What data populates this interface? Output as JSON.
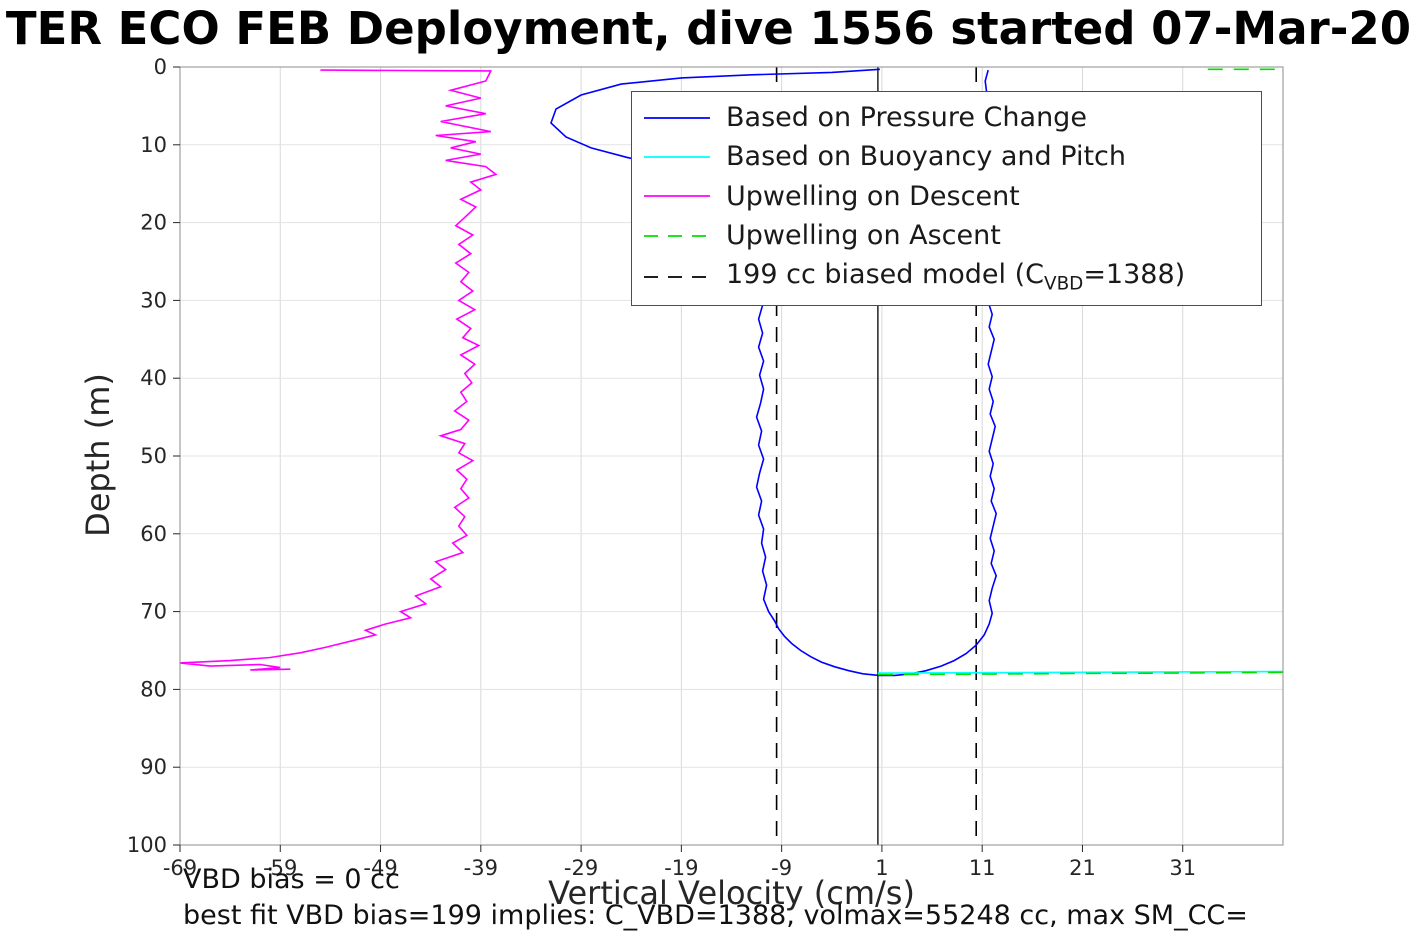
{
  "header": {
    "title": "TER ECO FEB Deployment, dive 1556 started 07-Mar-20"
  },
  "footer": {
    "vbd_bias": "VBD bias = 0 cc",
    "best_fit": "best fit VBD bias=199 implies: C_VBD=1388, volmax=55248 cc, max SM_CC="
  },
  "chart_data": {
    "type": "line",
    "title": "TER ECO FEB Deployment, dive 1556 started 07-Mar-20",
    "xlabel": "Vertical Velocity (cm/s)",
    "ylabel": "Depth (m)",
    "xlim": [
      -69,
      41
    ],
    "ylim": [
      0,
      100
    ],
    "y_inverted": true,
    "grid": true,
    "xticks": [
      -69,
      -59,
      -49,
      -39,
      -29,
      -19,
      -9,
      1,
      11,
      21,
      31
    ],
    "yticks": [
      0,
      10,
      20,
      30,
      40,
      50,
      60,
      70,
      80,
      90,
      100
    ],
    "colors": {
      "grid_v": "#d9d9d9",
      "grid_h": "#e3e3e3",
      "axis": "#262626",
      "box": "#8c8c8c",
      "blue": "#0000ff",
      "cyan": "#00ffff",
      "magenta": "#ff00ff",
      "green": "#00e000",
      "black": "#000000"
    },
    "reference_lines": [
      {
        "x": 0.6,
        "style": "solid",
        "color": "#000000"
      }
    ],
    "series": [
      {
        "id": "biased-model",
        "name": "199 cc biased model (C_VBD=1388)",
        "color": "#000000",
        "dash": "dashed",
        "segments": [
          [
            [
              -9.5,
              0
            ],
            [
              -9.5,
              100
            ]
          ],
          [
            [
              10.4,
              0
            ],
            [
              10.4,
              100
            ]
          ]
        ]
      },
      {
        "id": "upwelling-descent",
        "name": "Upwelling on Descent",
        "color": "#ff00ff",
        "dash": "solid",
        "segments": [
          [
            [
              -55,
              0.4
            ],
            [
              -38,
              0.5
            ],
            [
              -38.5,
              1.8
            ],
            [
              -42,
              3
            ],
            [
              -39,
              4
            ],
            [
              -42.5,
              5
            ],
            [
              -38.5,
              6
            ],
            [
              -43,
              7
            ],
            [
              -38,
              8.3
            ],
            [
              -43.5,
              8.8
            ],
            [
              -39.5,
              9.6
            ],
            [
              -42,
              10.4
            ],
            [
              -39,
              11.2
            ],
            [
              -42.5,
              12
            ],
            [
              -38.5,
              12.8
            ],
            [
              -37.5,
              13.8
            ],
            [
              -40,
              14.8
            ],
            [
              -39,
              15.8
            ],
            [
              -41,
              17
            ],
            [
              -39.5,
              18
            ],
            [
              -40.5,
              19.2
            ],
            [
              -41.5,
              20.4
            ],
            [
              -39.8,
              21.6
            ],
            [
              -41.2,
              22.8
            ],
            [
              -40,
              24
            ],
            [
              -41.5,
              25.2
            ],
            [
              -40.2,
              26.4
            ],
            [
              -41,
              27.6
            ],
            [
              -39.8,
              28.8
            ],
            [
              -41.2,
              30
            ],
            [
              -39.6,
              31.2
            ],
            [
              -41.4,
              32.4
            ],
            [
              -40,
              33.6
            ],
            [
              -40.8,
              34.8
            ],
            [
              -39.2,
              35.8
            ],
            [
              -41,
              37
            ],
            [
              -39.6,
              38.2
            ],
            [
              -40.6,
              39.4
            ],
            [
              -39.9,
              40.6
            ],
            [
              -41,
              41.8
            ],
            [
              -40.4,
              43
            ],
            [
              -41.6,
              44.2
            ],
            [
              -40.2,
              45.4
            ],
            [
              -41,
              46.6
            ],
            [
              -43,
              47.4
            ],
            [
              -40.6,
              48.4
            ],
            [
              -41.2,
              49.6
            ],
            [
              -39.8,
              50.6
            ],
            [
              -41.4,
              51.8
            ],
            [
              -40.4,
              53
            ],
            [
              -41,
              54.2
            ],
            [
              -40.2,
              55.4
            ],
            [
              -41.6,
              56.6
            ],
            [
              -40.6,
              57.8
            ],
            [
              -41.2,
              59
            ],
            [
              -40.4,
              60.2
            ],
            [
              -41.8,
              61.2
            ],
            [
              -40.8,
              62.4
            ],
            [
              -43.5,
              63.6
            ],
            [
              -42.5,
              64.6
            ],
            [
              -44,
              65.8
            ],
            [
              -43,
              66.8
            ],
            [
              -45.5,
              68
            ],
            [
              -44.5,
              69
            ],
            [
              -47,
              70
            ],
            [
              -46,
              70.8
            ],
            [
              -48.5,
              71.6
            ],
            [
              -50.5,
              72.4
            ],
            [
              -49.5,
              73
            ],
            [
              -52,
              73.8
            ],
            [
              -54.5,
              74.6
            ],
            [
              -57,
              75.3
            ],
            [
              -60,
              75.9
            ],
            [
              -64,
              76.3
            ],
            [
              -69,
              76.6
            ],
            [
              -66,
              77
            ],
            [
              -61,
              76.8
            ],
            [
              -59,
              77.2
            ],
            [
              -62,
              77.5
            ],
            [
              -58,
              77.4
            ]
          ]
        ]
      },
      {
        "id": "pressure-change",
        "name": "Based on Pressure Change",
        "color": "#0000ff",
        "dash": "solid",
        "segments": [
          [
            [
              0.8,
              0.3
            ],
            [
              -4,
              0.7
            ],
            [
              -12,
              1
            ],
            [
              -19,
              1.4
            ],
            [
              -25,
              2.2
            ],
            [
              -29,
              3.6
            ],
            [
              -31.5,
              5.4
            ],
            [
              -32,
              7.2
            ],
            [
              -30.5,
              9
            ],
            [
              -28,
              10.4
            ],
            [
              -24.5,
              11.6
            ],
            [
              -20.5,
              12.8
            ],
            [
              -16.5,
              14
            ],
            [
              -13.5,
              15.4
            ],
            [
              -12,
              17
            ],
            [
              -11.2,
              18.8
            ],
            [
              -10.8,
              20.8
            ],
            [
              -11.2,
              22.8
            ],
            [
              -10.8,
              24.8
            ],
            [
              -11.1,
              26.8
            ],
            [
              -11.4,
              28.8
            ],
            [
              -10.9,
              30.6
            ],
            [
              -11.3,
              32.4
            ],
            [
              -10.9,
              34.2
            ],
            [
              -11.3,
              36
            ],
            [
              -10.8,
              37.8
            ],
            [
              -11.2,
              39.6
            ],
            [
              -10.8,
              41.4
            ],
            [
              -11.1,
              43.2
            ],
            [
              -11.5,
              45
            ],
            [
              -11,
              46.8
            ],
            [
              -11.3,
              48.6
            ],
            [
              -10.8,
              50.4
            ],
            [
              -11.2,
              52.2
            ],
            [
              -11.5,
              54
            ],
            [
              -11,
              55.8
            ],
            [
              -11.3,
              57.6
            ],
            [
              -10.8,
              59.4
            ],
            [
              -11,
              61.2
            ],
            [
              -10.6,
              63
            ],
            [
              -10.9,
              64.8
            ],
            [
              -10.5,
              66.6
            ],
            [
              -10.8,
              68.4
            ],
            [
              -10.3,
              70
            ],
            [
              -9.7,
              71.2
            ],
            [
              -9.3,
              72.2
            ],
            [
              -8.7,
              73.2
            ],
            [
              -8,
              74.1
            ],
            [
              -7.1,
              75
            ],
            [
              -6.1,
              75.8
            ],
            [
              -5,
              76.5
            ],
            [
              -3.7,
              77.1
            ],
            [
              -2.3,
              77.6
            ],
            [
              -0.9,
              78
            ],
            [
              0.7,
              78.2
            ],
            [
              2.3,
              78.2
            ],
            [
              3.9,
              78
            ],
            [
              5.4,
              77.6
            ],
            [
              6.9,
              77
            ],
            [
              8.2,
              76.3
            ],
            [
              9.4,
              75.4
            ],
            [
              10.4,
              74.3
            ],
            [
              11.2,
              73
            ],
            [
              11.7,
              71.6
            ],
            [
              12,
              70.2
            ],
            [
              11.7,
              68.6
            ],
            [
              12,
              67
            ],
            [
              12.4,
              65.4
            ],
            [
              11.9,
              63.8
            ],
            [
              12.2,
              62.2
            ],
            [
              11.8,
              60.6
            ],
            [
              12.1,
              59
            ],
            [
              12.4,
              57.4
            ],
            [
              11.9,
              55.8
            ],
            [
              12.2,
              54.2
            ],
            [
              11.8,
              52.6
            ],
            [
              12.1,
              51
            ],
            [
              11.7,
              49.4
            ],
            [
              12,
              47.8
            ],
            [
              12.3,
              46.2
            ],
            [
              11.8,
              44.6
            ],
            [
              12.1,
              43
            ],
            [
              11.7,
              41.4
            ],
            [
              12,
              39.8
            ],
            [
              11.6,
              38.2
            ],
            [
              11.9,
              36.6
            ],
            [
              12.2,
              35
            ],
            [
              11.7,
              33.4
            ],
            [
              12,
              31.8
            ],
            [
              11.6,
              30.2
            ],
            [
              11.3,
              28.6
            ],
            [
              11.6,
              27
            ],
            [
              11.2,
              25.4
            ],
            [
              11.5,
              23.8
            ],
            [
              11.2,
              21.8
            ],
            [
              11.5,
              19.8
            ],
            [
              11.2,
              17.8
            ],
            [
              11.4,
              15.8
            ],
            [
              11.1,
              13.8
            ],
            [
              11.4,
              11.8
            ],
            [
              11.2,
              9.8
            ],
            [
              11.5,
              7.8
            ],
            [
              11.2,
              5.8
            ],
            [
              11.5,
              3.8
            ],
            [
              11.3,
              1.8
            ],
            [
              11.6,
              0.4
            ]
          ]
        ]
      },
      {
        "id": "buoyancy-pitch",
        "name": "Based on Buoyancy and Pitch",
        "color": "#00ffff",
        "dash": "solid",
        "segments": [
          [
            [
              0.6,
              77.9
            ],
            [
              41,
              77.7
            ]
          ]
        ]
      },
      {
        "id": "upwelling-ascent",
        "name": "Upwelling on Ascent",
        "color": "#00e000",
        "dash": "dashed",
        "segments": [
          [
            [
              33.5,
              0.3
            ],
            [
              41,
              0.3
            ]
          ],
          [
            [
              0.6,
              78.1
            ],
            [
              10,
              78.05
            ],
            [
              20,
              77.95
            ],
            [
              30,
              77.9
            ],
            [
              41,
              77.8
            ]
          ]
        ]
      }
    ],
    "legend": {
      "position": "top-center",
      "entries": [
        {
          "label": "Based on Pressure Change",
          "color": "#0000ff",
          "dash": "solid"
        },
        {
          "label": "Based on Buoyancy and Pitch",
          "color": "#00ffff",
          "dash": "solid"
        },
        {
          "label": "Upwelling on Descent",
          "color": "#ff00ff",
          "dash": "solid"
        },
        {
          "label": "Upwelling on Ascent",
          "color": "#00e000",
          "dash": "dashed"
        },
        {
          "label": "199 cc biased model (C_VBD=1388)",
          "label_parts": {
            "prefix": "199 cc biased model (C",
            "sub": "VBD",
            "suffix": "=1388)"
          },
          "color": "#000000",
          "dash": "dashed"
        }
      ]
    }
  }
}
